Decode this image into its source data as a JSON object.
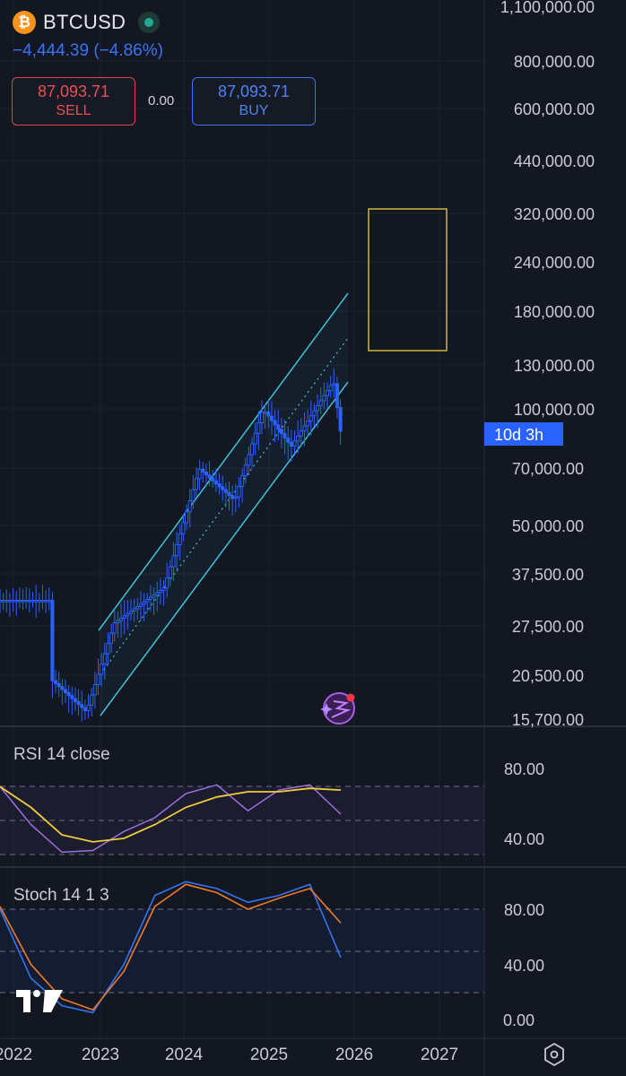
{
  "header": {
    "coin_symbol": "₿",
    "symbol": "BTCUSD",
    "change": "−4,444.39 (−4.86%)",
    "sell_price": "87,093.71",
    "sell_label": "SELL",
    "spread": "0.00",
    "buy_price": "87,093.71",
    "buy_label": "BUY"
  },
  "countdown": "10d 3h",
  "colors": {
    "background": "#131722",
    "candle": "#2962ff",
    "channel": "#3ec3d8",
    "target_box": "#c9b73a",
    "rsi_line": "#9d6fe0",
    "rsi_ma": "#f2cc3b",
    "stoch_k": "#3574f0",
    "stoch_d": "#f07a2a",
    "sell": "#ef4d56",
    "buy": "#3b74f2"
  },
  "icons": [
    "bitcoin-icon",
    "market-status-icon",
    "tradingview-logo-icon",
    "ai-sparkle-icon",
    "settings-hexagon-icon"
  ],
  "chart_data": [
    {
      "type": "candlestick",
      "title": "BTCUSD",
      "scale": "log",
      "timeframe_years": [
        "2022",
        "2023",
        "2024",
        "2025",
        "2026",
        "2027"
      ],
      "y_ticks": [
        "1,100,000.00",
        "800,000.00",
        "600,000.00",
        "440,000.00",
        "320,000.00",
        "240,000.00",
        "180,000.00",
        "130,000.00",
        "100,000.00",
        "70,000.00",
        "50,000.00",
        "37,500.00",
        "27,500.00",
        "20,500.00",
        "15,700.00"
      ],
      "last_price": 87093.71,
      "approx_price_path": [
        {
          "date": "2022-06",
          "price": 20000
        },
        {
          "date": "2022-11",
          "price": 16500
        },
        {
          "date": "2023-03",
          "price": 28000
        },
        {
          "date": "2023-10",
          "price": 34500
        },
        {
          "date": "2024-03",
          "price": 70000
        },
        {
          "date": "2024-08",
          "price": 58000
        },
        {
          "date": "2024-12",
          "price": 100000
        },
        {
          "date": "2025-04",
          "price": 80000
        },
        {
          "date": "2025-10",
          "price": 118000
        },
        {
          "date": "2025-11",
          "price": 87093.71
        }
      ],
      "annotations": [
        "ascending parallel channel",
        "target zone approx. 145,000–330,000"
      ]
    },
    {
      "type": "line",
      "title": "RSI 14 close",
      "y_ticks": [
        "80.00",
        "40.00"
      ],
      "series": [
        {
          "name": "RSI",
          "values": [
            70,
            48,
            32,
            33,
            44,
            52,
            66,
            71,
            56,
            68,
            71,
            54
          ]
        },
        {
          "name": "RSI MA",
          "values": [
            70,
            58,
            42,
            38,
            40,
            48,
            58,
            64,
            67,
            67,
            69,
            68
          ]
        }
      ]
    },
    {
      "type": "line",
      "title": "Stoch 14 1 3",
      "y_ticks": [
        "80.00",
        "40.00",
        "0.00"
      ],
      "series": [
        {
          "name": "%K",
          "values": [
            80,
            30,
            10,
            5,
            40,
            90,
            100,
            95,
            85,
            90,
            98,
            45
          ]
        },
        {
          "name": "%D",
          "values": [
            82,
            40,
            15,
            7,
            35,
            82,
            98,
            92,
            80,
            88,
            95,
            70
          ]
        }
      ]
    }
  ]
}
